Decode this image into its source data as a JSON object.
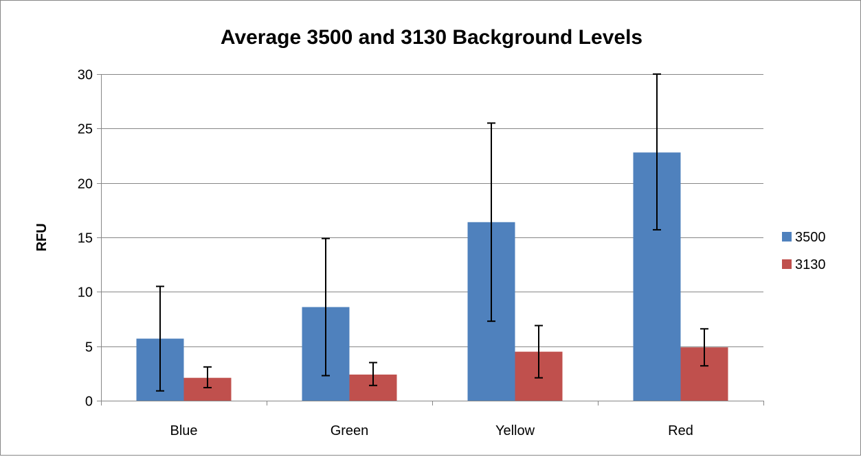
{
  "chart_data": {
    "type": "bar",
    "title": "Average 3500 and 3130 Background Levels",
    "xlabel": "",
    "ylabel": "RFU",
    "categories": [
      "Blue",
      "Green",
      "Yellow",
      "Red"
    ],
    "ylim": [
      0,
      30
    ],
    "yticks": [
      0,
      5,
      10,
      15,
      20,
      25,
      30
    ],
    "grid": true,
    "legend_position": "right",
    "series": [
      {
        "name": "3500",
        "color": "#4F81BD",
        "values": [
          5.7,
          8.6,
          16.4,
          22.8
        ],
        "error_low": [
          0.9,
          2.3,
          7.3,
          15.7
        ],
        "error_high": [
          10.5,
          14.9,
          25.5,
          30.0
        ]
      },
      {
        "name": "3130",
        "color": "#C0504D",
        "values": [
          2.1,
          2.4,
          4.5,
          4.9
        ],
        "error_low": [
          1.2,
          1.4,
          2.1,
          3.2
        ],
        "error_high": [
          3.1,
          3.5,
          6.9,
          6.6
        ]
      }
    ]
  }
}
